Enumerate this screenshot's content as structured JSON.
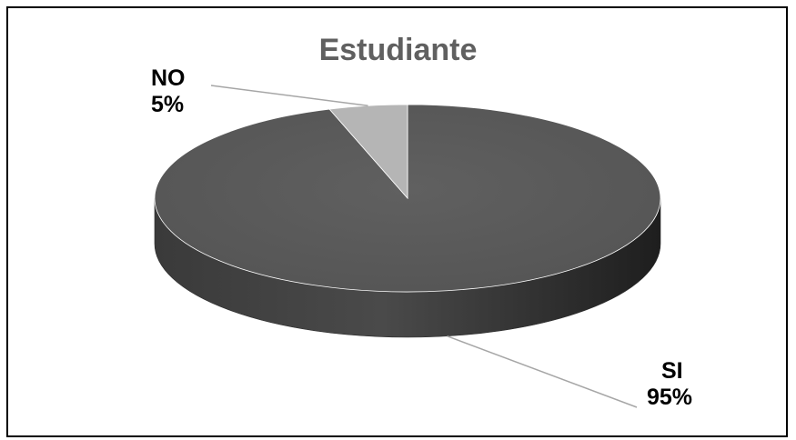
{
  "chart_data": {
    "type": "pie",
    "title": "Estudiante",
    "three_d": true,
    "slices": [
      {
        "name": "SI",
        "value": 95,
        "label": "95%",
        "color": "#5a5a5a"
      },
      {
        "name": "NO",
        "value": 5,
        "label": "5%",
        "color": "#b5b5b5"
      }
    ]
  }
}
